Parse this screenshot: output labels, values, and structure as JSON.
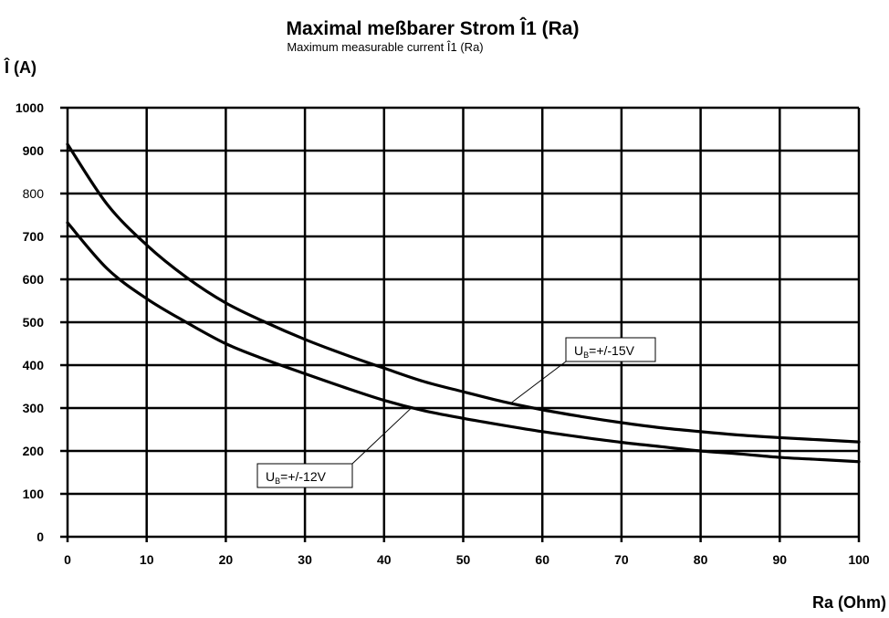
{
  "chart_data": {
    "type": "line",
    "title": "Maximal  meßbarer Strom Î1  (Ra)",
    "subtitle": "Maximum measurable current Î1 (Ra)",
    "ylabel": "Î  (A)",
    "xlabel": "Ra  (Ohm)",
    "xlim": [
      0,
      100
    ],
    "ylim": [
      0,
      1000
    ],
    "grid": true,
    "x_ticks": [
      "0",
      "10",
      "20",
      "30",
      "40",
      "50",
      "60",
      "70",
      "80",
      "90",
      "100"
    ],
    "y_ticks": [
      "0",
      "100",
      "200",
      "300",
      "400",
      "500",
      "600",
      "700",
      "800",
      "900",
      "1000"
    ],
    "x": [
      0,
      5,
      10,
      15,
      20,
      25,
      30,
      35,
      40,
      45,
      50,
      55,
      60,
      65,
      70,
      75,
      80,
      85,
      90,
      95,
      100
    ],
    "series": [
      {
        "values": [
          915,
          775,
          680,
          605,
          545,
          500,
          460,
          425,
          393,
          362,
          338,
          315,
          296,
          280,
          266,
          254,
          245,
          237,
          231,
          226,
          221
        ]
      },
      {
        "values": [
          732,
          625,
          555,
          500,
          450,
          413,
          380,
          348,
          318,
          294,
          276,
          260,
          245,
          232,
          220,
          210,
          200,
          193,
          185,
          180,
          175
        ]
      }
    ],
    "annotations": [
      {
        "text": "U",
        "sub": "B",
        "rest": "=+/-15V",
        "points_to_series": 0,
        "target_x": 56
      },
      {
        "text": "U",
        "sub": "B",
        "rest": "=+/-12V",
        "points_to_series": 1,
        "target_x": 43.5
      }
    ]
  }
}
